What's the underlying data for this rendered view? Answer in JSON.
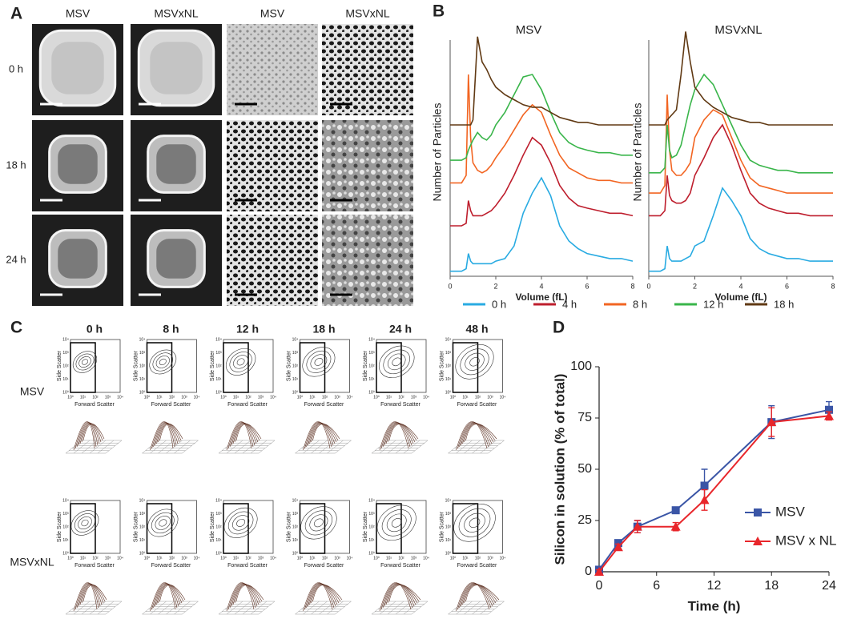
{
  "panel_labels": [
    "A",
    "B",
    "C",
    "D"
  ],
  "panel_a": {
    "columns": [
      "MSV",
      "MSVxNL",
      "MSV",
      "MSVxNL"
    ],
    "rows": [
      "0 h",
      "18 h",
      "24 h"
    ]
  },
  "panel_c": {
    "columns": [
      "0 h",
      "8 h",
      "12 h",
      "18 h",
      "24 h",
      "48 h"
    ],
    "rows": [
      "MSV",
      "MSVxNL"
    ],
    "y_label": "Side Scatter",
    "x_label": "Forward Scatter",
    "tick_labels": [
      "10⁰",
      "10¹",
      "10²",
      "10³",
      "10⁴"
    ]
  },
  "chart_data": [
    {
      "type": "line",
      "title": "MSV",
      "x_label": "Volume (fL)",
      "y_label": "Number of Particles",
      "x": [
        0,
        0.5,
        0.7,
        0.8,
        0.9,
        1.0,
        1.2,
        1.4,
        1.6,
        1.8,
        2.0,
        2.4,
        2.8,
        3.2,
        3.6,
        4.0,
        4.4,
        4.8,
        5.2,
        5.6,
        6.0,
        6.5,
        7.0,
        7.5,
        8.0
      ],
      "xlim": [
        0,
        8
      ],
      "xticks": [
        0,
        2,
        4,
        6,
        8
      ],
      "ylim": [
        0,
        100
      ],
      "series": [
        {
          "name": "0 h",
          "color": "#29abe2",
          "values": [
            2,
            2,
            3,
            9,
            6,
            5,
            5,
            5,
            5,
            5,
            6,
            7,
            12,
            25,
            33,
            39,
            32,
            20,
            14,
            11,
            9,
            8,
            7,
            7,
            6
          ]
        },
        {
          "name": "4 h",
          "color": "#be1e2d",
          "values": [
            20,
            20,
            21,
            30,
            26,
            24,
            24,
            24,
            25,
            26,
            28,
            33,
            40,
            48,
            55,
            52,
            45,
            36,
            31,
            28,
            27,
            26,
            25,
            25,
            24
          ]
        },
        {
          "name": "8 h",
          "color": "#f26522",
          "values": [
            37,
            37,
            40,
            80,
            55,
            45,
            42,
            41,
            42,
            44,
            47,
            52,
            58,
            64,
            68,
            65,
            56,
            48,
            43,
            41,
            39,
            38,
            38,
            37,
            37
          ]
        },
        {
          "name": "12 h",
          "color": "#39b54a",
          "values": [
            46,
            46,
            47,
            50,
            52,
            54,
            57,
            55,
            54,
            56,
            60,
            65,
            72,
            79,
            80,
            74,
            65,
            57,
            53,
            51,
            50,
            49,
            49,
            48,
            48
          ]
        },
        {
          "name": "18 h",
          "color": "#603913",
          "values": [
            60,
            60,
            60,
            60,
            60,
            62,
            95,
            85,
            82,
            78,
            75,
            72,
            70,
            68,
            67,
            67,
            65,
            63,
            62,
            61,
            61,
            60,
            60,
            60,
            60
          ]
        }
      ]
    },
    {
      "type": "line",
      "title": "MSVxNL",
      "x_label": "Volume (fL)",
      "y_label": "Number of Particles",
      "x": [
        0,
        0.5,
        0.7,
        0.8,
        0.9,
        1.0,
        1.2,
        1.4,
        1.6,
        1.8,
        2.0,
        2.4,
        2.8,
        3.2,
        3.6,
        4.0,
        4.4,
        4.8,
        5.2,
        5.6,
        6.0,
        6.5,
        7.0,
        7.5,
        8.0
      ],
      "xlim": [
        0,
        8
      ],
      "xticks": [
        0,
        2,
        4,
        6,
        8
      ],
      "ylim": [
        0,
        100
      ],
      "series": [
        {
          "color": "#29abe2",
          "values": [
            2,
            2,
            3,
            12,
            7,
            6,
            6,
            6,
            7,
            8,
            12,
            14,
            24,
            35,
            30,
            24,
            15,
            11,
            9,
            8,
            7,
            7,
            6,
            6,
            6
          ]
        },
        {
          "color": "#be1e2d",
          "values": [
            24,
            24,
            26,
            40,
            32,
            30,
            29,
            29,
            30,
            33,
            40,
            47,
            55,
            60,
            52,
            42,
            33,
            29,
            27,
            26,
            25,
            25,
            24,
            24,
            24
          ]
        },
        {
          "color": "#f26522",
          "values": [
            33,
            33,
            36,
            72,
            50,
            42,
            40,
            40,
            42,
            45,
            55,
            62,
            66,
            64,
            55,
            46,
            39,
            36,
            35,
            34,
            33,
            33,
            33,
            33,
            33
          ]
        },
        {
          "color": "#39b54a",
          "values": [
            41,
            41,
            43,
            60,
            50,
            47,
            48,
            52,
            60,
            68,
            74,
            80,
            76,
            68,
            60,
            52,
            46,
            44,
            43,
            42,
            42,
            41,
            41,
            41,
            41
          ]
        },
        {
          "color": "#603913",
          "values": [
            60,
            60,
            60,
            62,
            63,
            64,
            66,
            80,
            97,
            85,
            75,
            70,
            67,
            65,
            63,
            62,
            61,
            61,
            60,
            60,
            60,
            60,
            60,
            60,
            60
          ]
        }
      ]
    },
    {
      "type": "line",
      "x_label": "Time (h)",
      "y_label": "Silicon in solution (% of total)",
      "x": [
        0,
        2,
        4,
        8,
        11,
        18,
        24
      ],
      "xlim": [
        0,
        24
      ],
      "xticks": [
        0,
        6,
        12,
        18,
        24
      ],
      "ylim": [
        0,
        100
      ],
      "yticks": [
        0,
        25,
        50,
        75,
        100
      ],
      "series": [
        {
          "name": "MSV",
          "color": "#3a55a6",
          "marker": "square",
          "values": [
            1,
            14,
            22,
            30,
            42,
            73,
            79
          ],
          "errors": [
            1,
            1.5,
            3,
            1,
            8,
            8,
            4
          ]
        },
        {
          "name": "MSV x NL",
          "color": "#e8262b",
          "marker": "triangle",
          "values": [
            0,
            12,
            22,
            22,
            35,
            73,
            76
          ],
          "errors": [
            1,
            1.5,
            3,
            2,
            5,
            7,
            2
          ]
        }
      ]
    }
  ]
}
